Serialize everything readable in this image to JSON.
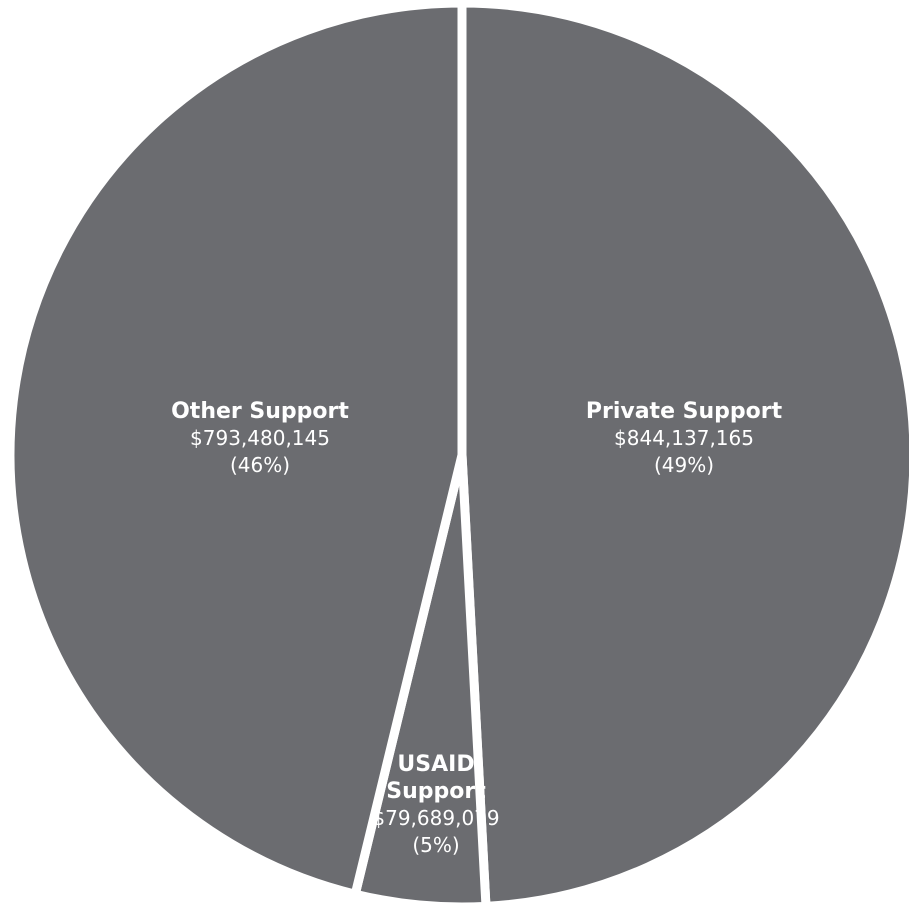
{
  "chart_data": {
    "type": "pie",
    "slice_color": "#6b6c70",
    "separator_color": "#ffffff",
    "slices": [
      {
        "name_lines": [
          "Private Support"
        ],
        "value": 844137165,
        "value_label": "$844,137,165",
        "percent_label": "(49%)"
      },
      {
        "name_lines": [
          "USAID",
          "Support"
        ],
        "value": 79689079,
        "value_label": "$79,689,079",
        "percent_label": "(5%)"
      },
      {
        "name_lines": [
          "Other Support"
        ],
        "value": 793480145,
        "value_label": "$793,480,145",
        "percent_label": "(46%)"
      }
    ]
  }
}
